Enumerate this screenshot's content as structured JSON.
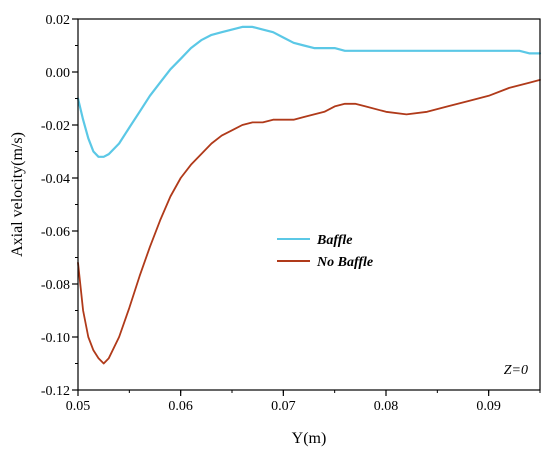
{
  "chart_data": {
    "type": "line",
    "xlabel": "Y(m)",
    "ylabel": "Axial velocity(m/s)",
    "xlim": [
      0.05,
      0.095
    ],
    "ylim": [
      -0.12,
      0.02
    ],
    "xticks": [
      0.05,
      0.06,
      0.07,
      0.08,
      0.09
    ],
    "xtick_labels": [
      "0.05",
      "0.06",
      "0.07",
      "0.08",
      "0.09"
    ],
    "yticks": [
      -0.12,
      -0.1,
      -0.08,
      -0.06,
      -0.04,
      -0.02,
      0.0,
      0.02
    ],
    "ytick_labels": [
      "-0.12",
      "-0.10",
      "-0.08",
      "-0.06",
      "-0.04",
      "-0.02",
      "0.00",
      "0.02"
    ],
    "grid": false,
    "legend_position": "center-right",
    "annotation": "Z=0",
    "series": [
      {
        "name": "Baffle",
        "color": "#5bc8e6",
        "x": [
          0.05,
          0.0505,
          0.051,
          0.0515,
          0.052,
          0.0525,
          0.053,
          0.054,
          0.055,
          0.056,
          0.057,
          0.058,
          0.059,
          0.06,
          0.061,
          0.062,
          0.063,
          0.064,
          0.065,
          0.066,
          0.067,
          0.068,
          0.069,
          0.07,
          0.071,
          0.072,
          0.073,
          0.074,
          0.075,
          0.076,
          0.078,
          0.08,
          0.082,
          0.084,
          0.086,
          0.088,
          0.09,
          0.092,
          0.093,
          0.094,
          0.095
        ],
        "y": [
          -0.01,
          -0.018,
          -0.025,
          -0.03,
          -0.032,
          -0.032,
          -0.031,
          -0.027,
          -0.021,
          -0.015,
          -0.009,
          -0.004,
          0.001,
          0.005,
          0.009,
          0.012,
          0.014,
          0.015,
          0.016,
          0.017,
          0.017,
          0.016,
          0.015,
          0.013,
          0.011,
          0.01,
          0.009,
          0.009,
          0.009,
          0.008,
          0.008,
          0.008,
          0.008,
          0.008,
          0.008,
          0.008,
          0.008,
          0.008,
          0.008,
          0.007,
          0.007
        ]
      },
      {
        "name": "No Baffle",
        "color": "#b03a1a",
        "x": [
          0.05,
          0.0505,
          0.051,
          0.0515,
          0.052,
          0.0525,
          0.053,
          0.054,
          0.055,
          0.056,
          0.057,
          0.058,
          0.059,
          0.06,
          0.061,
          0.062,
          0.063,
          0.064,
          0.065,
          0.066,
          0.067,
          0.068,
          0.069,
          0.07,
          0.071,
          0.072,
          0.073,
          0.074,
          0.075,
          0.076,
          0.077,
          0.078,
          0.08,
          0.082,
          0.084,
          0.086,
          0.088,
          0.09,
          0.092,
          0.094,
          0.095
        ],
        "y": [
          -0.072,
          -0.09,
          -0.1,
          -0.105,
          -0.108,
          -0.11,
          -0.108,
          -0.1,
          -0.089,
          -0.077,
          -0.066,
          -0.056,
          -0.047,
          -0.04,
          -0.035,
          -0.031,
          -0.027,
          -0.024,
          -0.022,
          -0.02,
          -0.019,
          -0.019,
          -0.018,
          -0.018,
          -0.018,
          -0.017,
          -0.016,
          -0.015,
          -0.013,
          -0.012,
          -0.012,
          -0.013,
          -0.015,
          -0.016,
          -0.015,
          -0.013,
          -0.011,
          -0.009,
          -0.006,
          -0.004,
          -0.003
        ]
      }
    ]
  }
}
